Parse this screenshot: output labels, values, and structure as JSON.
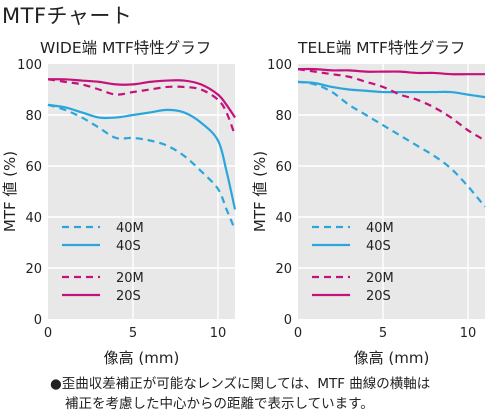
{
  "page": {
    "title": "MTFチャート",
    "footnote_line1": "●歪曲収差補正が可能なレンズに関しては、MTF 曲線の横軸は",
    "footnote_line2": "補正を考慮した中心からの距離で表示しています。"
  },
  "colors": {
    "blue": "#2aa6dc",
    "magenta": "#c4127a",
    "plot_bg": "#e8e8e8"
  },
  "chart_data": [
    {
      "type": "line",
      "title": "WIDE端 MTF特性グラフ",
      "xlabel": "像高 (mm)",
      "ylabel": "MTF 値 (%)",
      "xlim": [
        0,
        11
      ],
      "ylim": [
        0,
        100
      ],
      "xticks": [
        0,
        5,
        10
      ],
      "yticks": [
        0,
        20,
        40,
        60,
        80,
        100
      ],
      "grid": true,
      "legend_position": "bottom-left",
      "legend_groups": [
        [
          "40M",
          "40S"
        ],
        [
          "20M",
          "20S"
        ]
      ],
      "series": [
        {
          "name": "40M",
          "color": "#2aa6dc",
          "style": "dashed",
          "x": [
            0,
            1,
            2,
            3,
            4,
            5,
            6,
            7,
            8,
            9,
            10,
            10.5,
            11
          ],
          "y": [
            84,
            82,
            79,
            75,
            71,
            71,
            70,
            68,
            64,
            58,
            51,
            43,
            35
          ]
        },
        {
          "name": "40S",
          "color": "#2aa6dc",
          "style": "solid",
          "x": [
            0,
            1,
            2,
            3,
            4,
            5,
            6,
            7,
            8,
            9,
            10,
            10.5,
            11
          ],
          "y": [
            84,
            83,
            81,
            79,
            79,
            80,
            81,
            82,
            81,
            77,
            70,
            58,
            43
          ]
        },
        {
          "name": "20M",
          "color": "#c4127a",
          "style": "dashed",
          "x": [
            0,
            1,
            2,
            3,
            4,
            5,
            6,
            7,
            8,
            9,
            10,
            10.5,
            11
          ],
          "y": [
            94,
            93,
            92,
            90,
            88,
            89,
            90,
            91,
            91,
            90,
            86,
            81,
            72
          ]
        },
        {
          "name": "20S",
          "color": "#c4127a",
          "style": "solid",
          "x": [
            0,
            1,
            2,
            3,
            4,
            5,
            6,
            7,
            8,
            9,
            10,
            10.5,
            11
          ],
          "y": [
            94,
            94,
            93.5,
            93,
            92,
            92,
            93,
            93.5,
            93.5,
            92,
            88,
            84,
            79
          ]
        }
      ]
    },
    {
      "type": "line",
      "title": "TELE端 MTF特性グラフ",
      "xlabel": "像高 (mm)",
      "ylabel": "MTF 値 (%)",
      "xlim": [
        0,
        11
      ],
      "ylim": [
        0,
        100
      ],
      "xticks": [
        0,
        5,
        10
      ],
      "yticks": [
        0,
        20,
        40,
        60,
        80,
        100
      ],
      "grid": true,
      "legend_position": "bottom-left",
      "legend_groups": [
        [
          "40M",
          "40S"
        ],
        [
          "20M",
          "20S"
        ]
      ],
      "series": [
        {
          "name": "40M",
          "color": "#2aa6dc",
          "style": "dashed",
          "x": [
            0,
            1,
            2,
            3,
            4,
            5,
            6,
            7,
            8,
            9,
            10,
            11
          ],
          "y": [
            93,
            92,
            89,
            84,
            80,
            76,
            72,
            68,
            64,
            59,
            52,
            44
          ]
        },
        {
          "name": "40S",
          "color": "#2aa6dc",
          "style": "solid",
          "x": [
            0,
            1,
            2,
            3,
            4,
            5,
            6,
            7,
            8,
            9,
            10,
            11
          ],
          "y": [
            93,
            92.5,
            91,
            90,
            89.5,
            89,
            89,
            89,
            89,
            89,
            88,
            87
          ]
        },
        {
          "name": "20M",
          "color": "#c4127a",
          "style": "dashed",
          "x": [
            0,
            1,
            2,
            3,
            4,
            5,
            6,
            7,
            8,
            9,
            10,
            11
          ],
          "y": [
            98,
            97,
            96,
            95,
            93,
            91,
            88,
            86,
            83,
            79,
            74,
            70
          ]
        },
        {
          "name": "20S",
          "color": "#c4127a",
          "style": "solid",
          "x": [
            0,
            1,
            2,
            3,
            4,
            5,
            6,
            7,
            8,
            9,
            10,
            11
          ],
          "y": [
            98,
            98,
            97.5,
            97.5,
            97,
            97,
            97,
            96.5,
            96.5,
            96,
            96,
            96
          ]
        }
      ]
    }
  ]
}
